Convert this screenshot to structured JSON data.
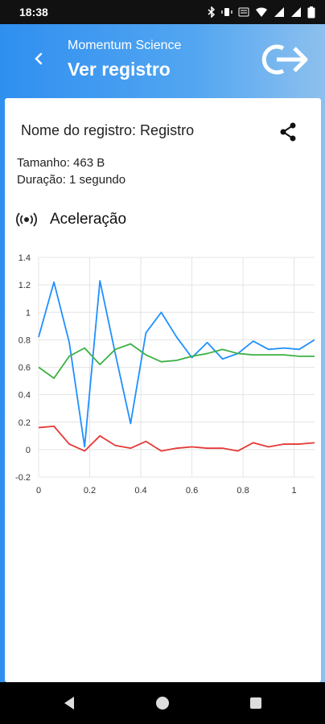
{
  "status_bar": {
    "time": "18:38"
  },
  "header": {
    "app_name": "Momentum Science",
    "title": "Ver registro"
  },
  "record": {
    "name": "Nome do registro: Registro",
    "size": "Tamanho: 463 B",
    "duration": "Duração: 1 segundo"
  },
  "section": {
    "title": "Aceleração"
  },
  "colors": {
    "header_start": "#2f8ff0",
    "header_end": "#8dc0ee",
    "series_blue": "#1e90ff",
    "series_green": "#3cb043",
    "series_red": "#e53935"
  },
  "chart_data": {
    "type": "line",
    "xlim": [
      0,
      1.08
    ],
    "ylim": [
      -0.2,
      1.4
    ],
    "x_ticks": [
      "0",
      "0.2",
      "0.4",
      "0.6",
      "0.8",
      "1"
    ],
    "x_tick_values": [
      0,
      0.2,
      0.4,
      0.6,
      0.8,
      1
    ],
    "y_ticks": [
      "-0.2",
      "0",
      "0.2",
      "0.4",
      "0.6",
      "0.8",
      "1",
      "1.2",
      "1.4"
    ],
    "y_tick_values": [
      -0.2,
      0,
      0.2,
      0.4,
      0.6,
      0.8,
      1,
      1.2,
      1.4
    ],
    "grid": true,
    "series": [
      {
        "color": "#1e90ff",
        "x": [
          0,
          0.06,
          0.12,
          0.18,
          0.24,
          0.3,
          0.36,
          0.42,
          0.48,
          0.54,
          0.6,
          0.66,
          0.72,
          0.78,
          0.84,
          0.9,
          0.96,
          1.02,
          1.08
        ],
        "y": [
          0.82,
          1.22,
          0.78,
          0.02,
          1.23,
          0.7,
          0.19,
          0.85,
          1.0,
          0.82,
          0.67,
          0.78,
          0.66,
          0.7,
          0.79,
          0.73,
          0.74,
          0.73,
          0.8
        ]
      },
      {
        "color": "#3cb043",
        "x": [
          0,
          0.06,
          0.12,
          0.18,
          0.24,
          0.3,
          0.36,
          0.42,
          0.48,
          0.54,
          0.6,
          0.66,
          0.72,
          0.78,
          0.84,
          0.9,
          0.96,
          1.02,
          1.08
        ],
        "y": [
          0.6,
          0.52,
          0.68,
          0.74,
          0.62,
          0.73,
          0.77,
          0.69,
          0.64,
          0.65,
          0.68,
          0.7,
          0.73,
          0.7,
          0.69,
          0.69,
          0.69,
          0.68,
          0.68
        ]
      },
      {
        "color": "#e53935",
        "x": [
          0,
          0.06,
          0.12,
          0.18,
          0.24,
          0.3,
          0.36,
          0.42,
          0.48,
          0.54,
          0.6,
          0.66,
          0.72,
          0.78,
          0.84,
          0.9,
          0.96,
          1.02,
          1.08
        ],
        "y": [
          0.16,
          0.17,
          0.04,
          -0.01,
          0.1,
          0.03,
          0.01,
          0.06,
          -0.01,
          0.01,
          0.02,
          0.01,
          0.01,
          -0.01,
          0.05,
          0.02,
          0.04,
          0.04,
          0.05
        ]
      }
    ]
  }
}
